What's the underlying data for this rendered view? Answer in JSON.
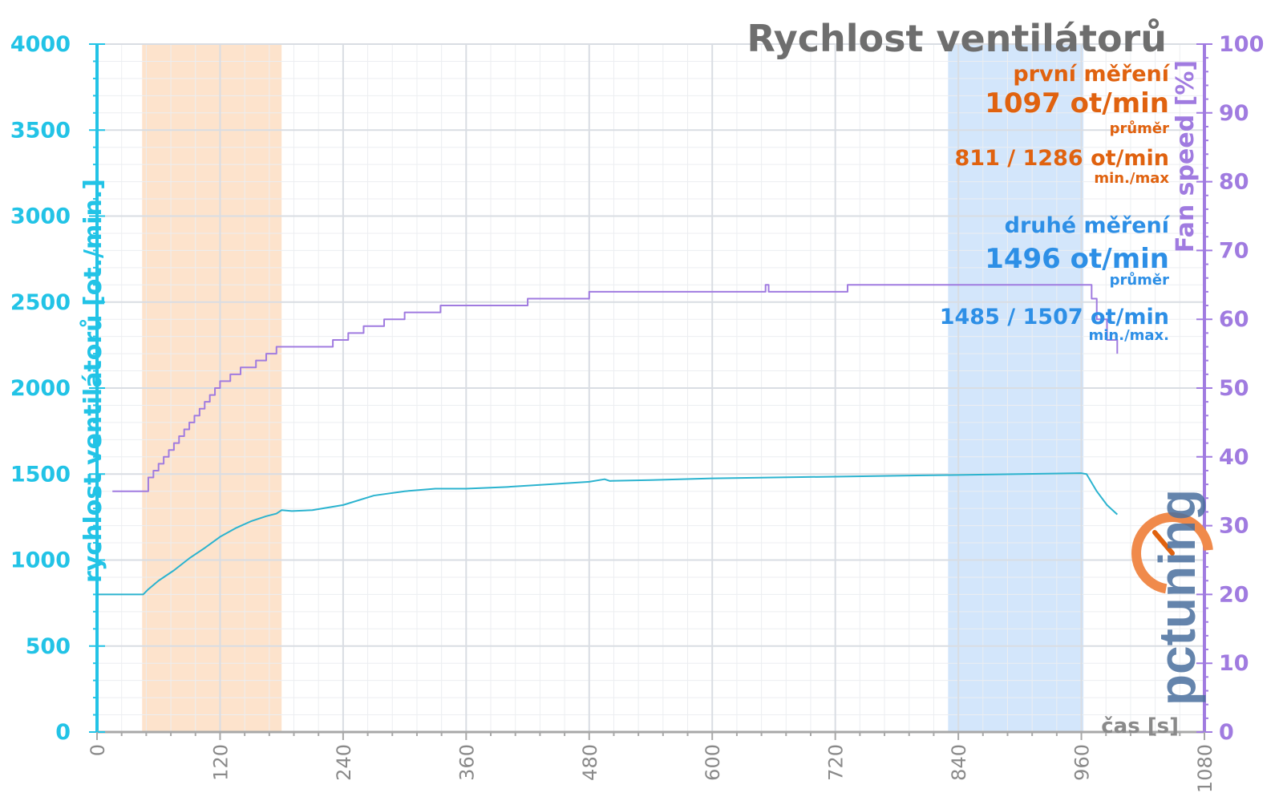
{
  "chart_data": {
    "type": "line",
    "title": "Rychlost ventilátorů",
    "xlabel": "čas [s]",
    "ylabel": "rychlost ventilátorů [ot./min.]",
    "y2label": "Fan speed [%]",
    "xlim": [
      0,
      1080
    ],
    "ylim": [
      0,
      4000
    ],
    "y2lim": [
      0,
      100
    ],
    "grid": true,
    "x_ticks": [
      "0",
      "120",
      "240",
      "360",
      "480",
      "600",
      "720",
      "840",
      "960",
      "1080"
    ],
    "y_ticks": [
      "0",
      "500",
      "1000",
      "1500",
      "2000",
      "2500",
      "3000",
      "3500",
      "4000"
    ],
    "y2_ticks": [
      "0",
      "10",
      "20",
      "30",
      "40",
      "50",
      "60",
      "70",
      "80",
      "90",
      "100"
    ],
    "highlight_regions": [
      {
        "name": "první měření",
        "x": [
          44,
          180
        ],
        "color": "#fde3cc"
      },
      {
        "name": "druhé měření",
        "x": [
          830,
          962
        ],
        "color": "#d3e6fb"
      }
    ],
    "series": [
      {
        "axis": "left",
        "color": "#2bb3cf",
        "points": [
          [
            0,
            800
          ],
          [
            30,
            800
          ],
          [
            45,
            800
          ],
          [
            50,
            830
          ],
          [
            60,
            880
          ],
          [
            75,
            940
          ],
          [
            90,
            1010
          ],
          [
            105,
            1070
          ],
          [
            120,
            1135
          ],
          [
            135,
            1185
          ],
          [
            150,
            1225
          ],
          [
            165,
            1255
          ],
          [
            175,
            1270
          ],
          [
            180,
            1290
          ],
          [
            190,
            1285
          ],
          [
            210,
            1290
          ],
          [
            240,
            1320
          ],
          [
            270,
            1375
          ],
          [
            300,
            1400
          ],
          [
            330,
            1415
          ],
          [
            360,
            1415
          ],
          [
            400,
            1425
          ],
          [
            440,
            1440
          ],
          [
            480,
            1455
          ],
          [
            495,
            1470
          ],
          [
            500,
            1460
          ],
          [
            540,
            1465
          ],
          [
            600,
            1475
          ],
          [
            660,
            1480
          ],
          [
            720,
            1485
          ],
          [
            780,
            1490
          ],
          [
            840,
            1495
          ],
          [
            900,
            1500
          ],
          [
            960,
            1505
          ],
          [
            965,
            1500
          ],
          [
            975,
            1400
          ],
          [
            985,
            1320
          ],
          [
            995,
            1265
          ]
        ]
      },
      {
        "axis": "right",
        "color": "#a07be0",
        "points": [
          [
            15,
            35
          ],
          [
            45,
            35
          ],
          [
            50,
            37
          ],
          [
            55,
            38
          ],
          [
            60,
            39
          ],
          [
            65,
            40
          ],
          [
            70,
            41
          ],
          [
            75,
            42
          ],
          [
            80,
            43
          ],
          [
            85,
            44
          ],
          [
            90,
            45
          ],
          [
            95,
            46
          ],
          [
            100,
            47
          ],
          [
            105,
            48
          ],
          [
            110,
            49
          ],
          [
            115,
            50
          ],
          [
            120,
            51
          ],
          [
            130,
            52
          ],
          [
            140,
            53
          ],
          [
            155,
            54
          ],
          [
            165,
            55
          ],
          [
            175,
            56
          ],
          [
            220,
            56
          ],
          [
            230,
            57
          ],
          [
            245,
            58
          ],
          [
            260,
            59
          ],
          [
            280,
            60
          ],
          [
            300,
            61
          ],
          [
            335,
            62
          ],
          [
            420,
            63
          ],
          [
            480,
            64
          ],
          [
            650,
            64
          ],
          [
            652,
            65
          ],
          [
            655,
            64
          ],
          [
            730,
            64
          ],
          [
            732,
            65
          ],
          [
            965,
            65
          ],
          [
            970,
            63
          ],
          [
            975,
            60
          ],
          [
            985,
            57
          ],
          [
            995,
            55
          ]
        ]
      }
    ],
    "annotations": {
      "first_label": "první měření",
      "first_avg": "1097 ot/min",
      "first_avg_caption": "průměr",
      "first_minmax": "811 / 1286 ot/min",
      "first_minmax_caption": "min./max",
      "second_label": "druhé měření",
      "second_avg": "1496 ot/min",
      "second_avg_caption": "průměr",
      "second_minmax": "1485 / 1507 ot/min",
      "second_minmax_caption": "min./max."
    }
  },
  "logo": {
    "text": "pctuning"
  },
  "colors": {
    "left_axis": "#22c3e6",
    "right_axis": "#a07be0",
    "first_measure": "#e0620f",
    "second_measure": "#2d8fe6",
    "grid": "#d9dde3"
  }
}
